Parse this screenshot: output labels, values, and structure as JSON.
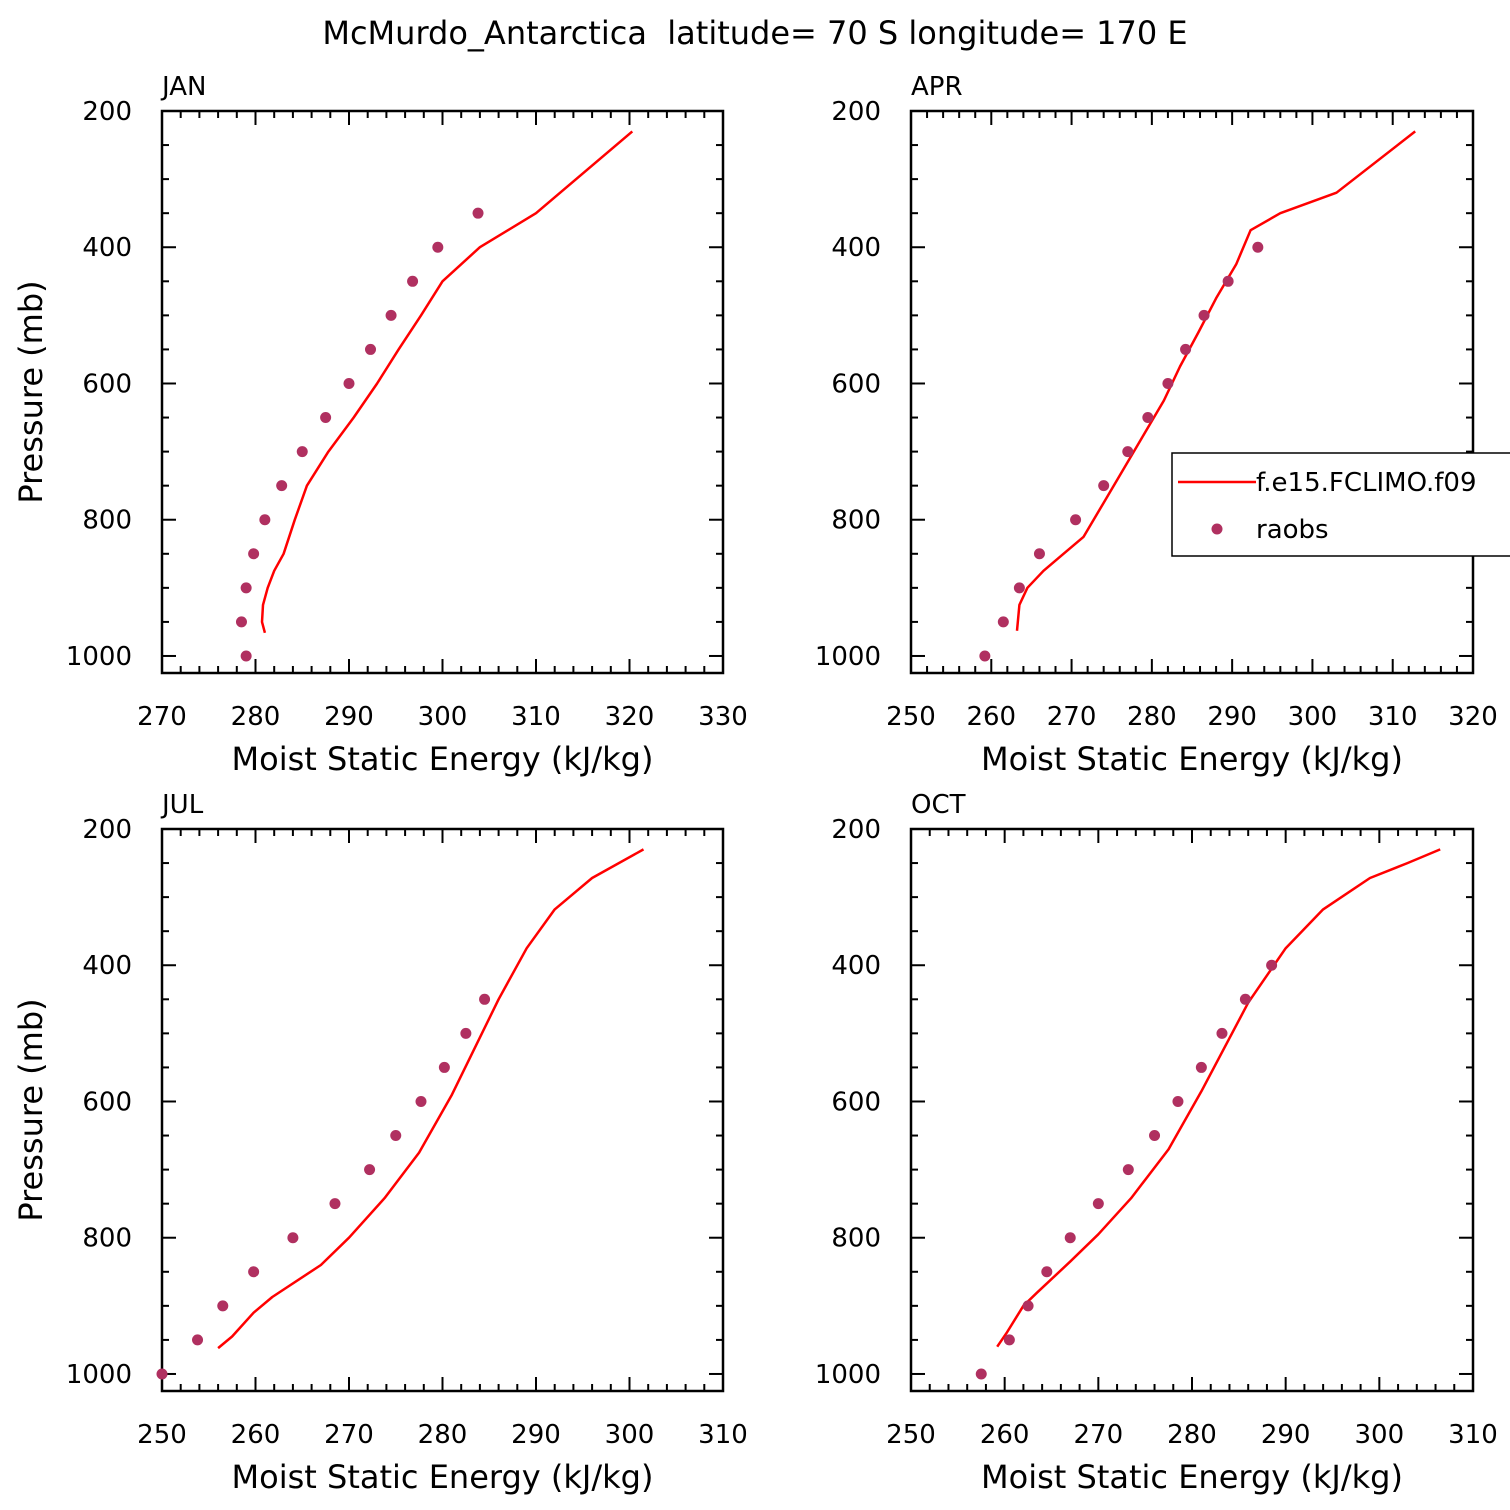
{
  "figure": {
    "title": "McMurdo_Antarctica  latitude= 70 S longitude= 170 E"
  },
  "legend": {
    "model_label": "f.e15.FCLIMO.f09",
    "obs_label": "raobs"
  },
  "colors": {
    "model_line": "#ff0000",
    "obs_marker": "#b03060",
    "axes": "#000000"
  },
  "chart_data": [
    {
      "type": "scatter",
      "panel_label": "JAN",
      "xlabel": "Moist Static Energy (kJ/kg)",
      "ylabel": "Pressure (mb)",
      "xlim": [
        270,
        330
      ],
      "ylim": [
        1025,
        200
      ],
      "y_inverted": true,
      "xticks": [
        "270",
        "280",
        "290",
        "300",
        "310",
        "320",
        "330"
      ],
      "yticks": [
        "200",
        "400",
        "600",
        "800",
        "1000"
      ],
      "legend_position": "none",
      "series": [
        {
          "name": "f.e15.FCLIMO.f09",
          "style": "line",
          "points": [
            [
              281.0,
              966
            ],
            [
              280.7,
              950
            ],
            [
              280.8,
              925
            ],
            [
              281.3,
              900
            ],
            [
              282.0,
              875
            ],
            [
              283.0,
              850
            ],
            [
              284.2,
              800
            ],
            [
              285.5,
              750
            ],
            [
              287.8,
              700
            ],
            [
              290.5,
              650
            ],
            [
              293.0,
              600
            ],
            [
              295.3,
              550
            ],
            [
              297.7,
              500
            ],
            [
              300.0,
              450
            ],
            [
              304.0,
              400
            ],
            [
              310.0,
              350
            ],
            [
              320.3,
              230
            ]
          ]
        },
        {
          "name": "raobs",
          "style": "markers",
          "points": [
            [
              279.0,
              1000
            ],
            [
              278.5,
              950
            ],
            [
              279.0,
              900
            ],
            [
              279.8,
              850
            ],
            [
              281.0,
              800
            ],
            [
              282.8,
              750
            ],
            [
              285.0,
              700
            ],
            [
              287.5,
              650
            ],
            [
              290.0,
              600
            ],
            [
              292.3,
              550
            ],
            [
              294.5,
              500
            ],
            [
              296.8,
              450
            ],
            [
              299.5,
              400
            ],
            [
              303.8,
              350
            ]
          ]
        }
      ]
    },
    {
      "type": "scatter",
      "panel_label": "APR",
      "xlabel": "Moist Static Energy (kJ/kg)",
      "ylabel": "",
      "xlim": [
        250,
        320
      ],
      "ylim": [
        1025,
        200
      ],
      "y_inverted": true,
      "xticks": [
        "250",
        "260",
        "270",
        "280",
        "290",
        "300",
        "310",
        "320"
      ],
      "yticks": [
        "200",
        "400",
        "600",
        "800",
        "1000"
      ],
      "legend_position": "right",
      "series": [
        {
          "name": "f.e15.FCLIMO.f09",
          "style": "line",
          "points": [
            [
              263.2,
              963
            ],
            [
              263.5,
              925
            ],
            [
              264.5,
              900
            ],
            [
              266.5,
              875
            ],
            [
              269.0,
              850
            ],
            [
              271.5,
              825
            ],
            [
              274.0,
              775
            ],
            [
              276.5,
              725
            ],
            [
              279.0,
              675
            ],
            [
              281.5,
              625
            ],
            [
              283.5,
              575
            ],
            [
              285.8,
              525
            ],
            [
              288.0,
              475
            ],
            [
              290.5,
              425
            ],
            [
              292.3,
              375
            ],
            [
              296.0,
              350
            ],
            [
              303.0,
              320
            ],
            [
              312.8,
              230
            ]
          ]
        },
        {
          "name": "raobs",
          "style": "markers",
          "points": [
            [
              259.2,
              1000
            ],
            [
              261.5,
              950
            ],
            [
              263.5,
              900
            ],
            [
              266.0,
              850
            ],
            [
              270.5,
              800
            ],
            [
              274.0,
              750
            ],
            [
              277.0,
              700
            ],
            [
              279.5,
              650
            ],
            [
              282.0,
              600
            ],
            [
              284.2,
              550
            ],
            [
              286.5,
              500
            ],
            [
              289.5,
              450
            ],
            [
              293.2,
              400
            ]
          ]
        }
      ]
    },
    {
      "type": "scatter",
      "panel_label": "JUL",
      "xlabel": "Moist Static Energy (kJ/kg)",
      "ylabel": "Pressure (mb)",
      "xlim": [
        250,
        310
      ],
      "ylim": [
        1025,
        200
      ],
      "y_inverted": true,
      "xticks": [
        "250",
        "260",
        "270",
        "280",
        "290",
        "300",
        "310"
      ],
      "yticks": [
        "200",
        "400",
        "600",
        "800",
        "1000"
      ],
      "legend_position": "none",
      "series": [
        {
          "name": "f.e15.FCLIMO.f09",
          "style": "line",
          "points": [
            [
              256.0,
              962
            ],
            [
              257.5,
              945
            ],
            [
              259.8,
              910
            ],
            [
              261.8,
              887
            ],
            [
              267.0,
              840
            ],
            [
              270.0,
              800
            ],
            [
              273.8,
              742
            ],
            [
              277.5,
              675
            ],
            [
              281.0,
              590
            ],
            [
              286.0,
              450
            ],
            [
              289.0,
              375
            ],
            [
              292.0,
              318
            ],
            [
              296.0,
              272
            ],
            [
              301.5,
              230
            ]
          ]
        },
        {
          "name": "raobs",
          "style": "markers",
          "points": [
            [
              250.0,
              1000
            ],
            [
              253.8,
              950
            ],
            [
              256.5,
              900
            ],
            [
              259.8,
              850
            ],
            [
              264.0,
              800
            ],
            [
              268.5,
              750
            ],
            [
              272.2,
              700
            ],
            [
              275.0,
              650
            ],
            [
              277.7,
              600
            ],
            [
              280.2,
              550
            ],
            [
              282.5,
              500
            ],
            [
              284.5,
              450
            ]
          ]
        }
      ]
    },
    {
      "type": "scatter",
      "panel_label": "OCT",
      "xlabel": "Moist Static Energy (kJ/kg)",
      "ylabel": "",
      "xlim": [
        250,
        310
      ],
      "ylim": [
        1025,
        200
      ],
      "y_inverted": true,
      "xticks": [
        "250",
        "260",
        "270",
        "280",
        "290",
        "300",
        "310"
      ],
      "yticks": [
        "200",
        "400",
        "600",
        "800",
        "1000"
      ],
      "legend_position": "none",
      "series": [
        {
          "name": "f.e15.FCLIMO.f09",
          "style": "line",
          "points": [
            [
              259.2,
              960
            ],
            [
              260.2,
              940
            ],
            [
              262.0,
              900
            ],
            [
              263.5,
              880
            ],
            [
              267.0,
              835
            ],
            [
              270.0,
              795
            ],
            [
              273.5,
              742
            ],
            [
              277.5,
              670
            ],
            [
              281.0,
              585
            ],
            [
              286.0,
              455
            ],
            [
              290.0,
              375
            ],
            [
              294.0,
              318
            ],
            [
              299.0,
              272
            ],
            [
              303.0,
              250
            ],
            [
              306.5,
              230
            ]
          ]
        },
        {
          "name": "raobs",
          "style": "markers",
          "points": [
            [
              257.5,
              1000
            ],
            [
              260.5,
              950
            ],
            [
              262.5,
              900
            ],
            [
              264.5,
              850
            ],
            [
              267.0,
              800
            ],
            [
              270.0,
              750
            ],
            [
              273.2,
              700
            ],
            [
              276.0,
              650
            ],
            [
              278.5,
              600
            ],
            [
              281.0,
              550
            ],
            [
              283.2,
              500
            ],
            [
              285.7,
              450
            ],
            [
              288.5,
              400
            ]
          ]
        }
      ]
    }
  ]
}
